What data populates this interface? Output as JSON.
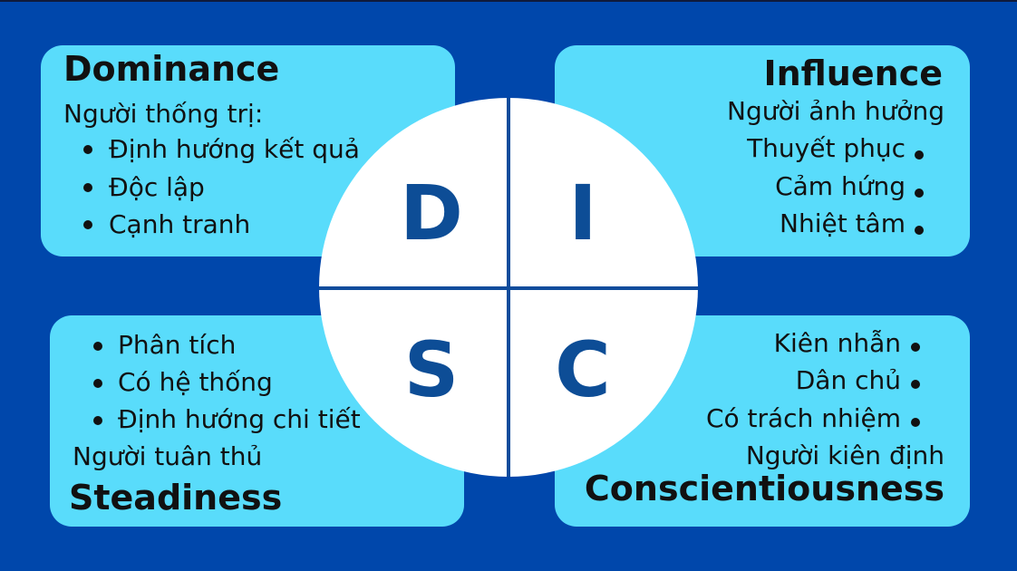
{
  "dominance": {
    "title": "Dominance",
    "subtitle": "Người thống trị:",
    "items": [
      "Định hướng kết quả",
      "Độc lập",
      "Cạnh tranh"
    ]
  },
  "influence": {
    "title": "Influence",
    "subtitle": "Người ảnh hưởng",
    "items": [
      "Thuyết phục",
      "Cảm hứng",
      "Nhiệt tâm"
    ]
  },
  "steadiness": {
    "title": "Steadiness",
    "subtitle": "Người tuân thủ",
    "items": [
      "Phân tích",
      "Có hệ thống",
      "Định hướng chi tiết"
    ]
  },
  "conscientiousness": {
    "title": "Conscientiousness",
    "subtitle": "Người kiên định",
    "items": [
      "Kiên nhẫn",
      "Dân chủ",
      "Có trách nhiệm"
    ]
  },
  "disc": {
    "letters": [
      "D",
      "I",
      "S",
      "C"
    ]
  },
  "colors": {
    "background": "#0047AB",
    "card": "#59DCFB",
    "letter": "#0d4d96",
    "circle": "#FFFFFF"
  }
}
